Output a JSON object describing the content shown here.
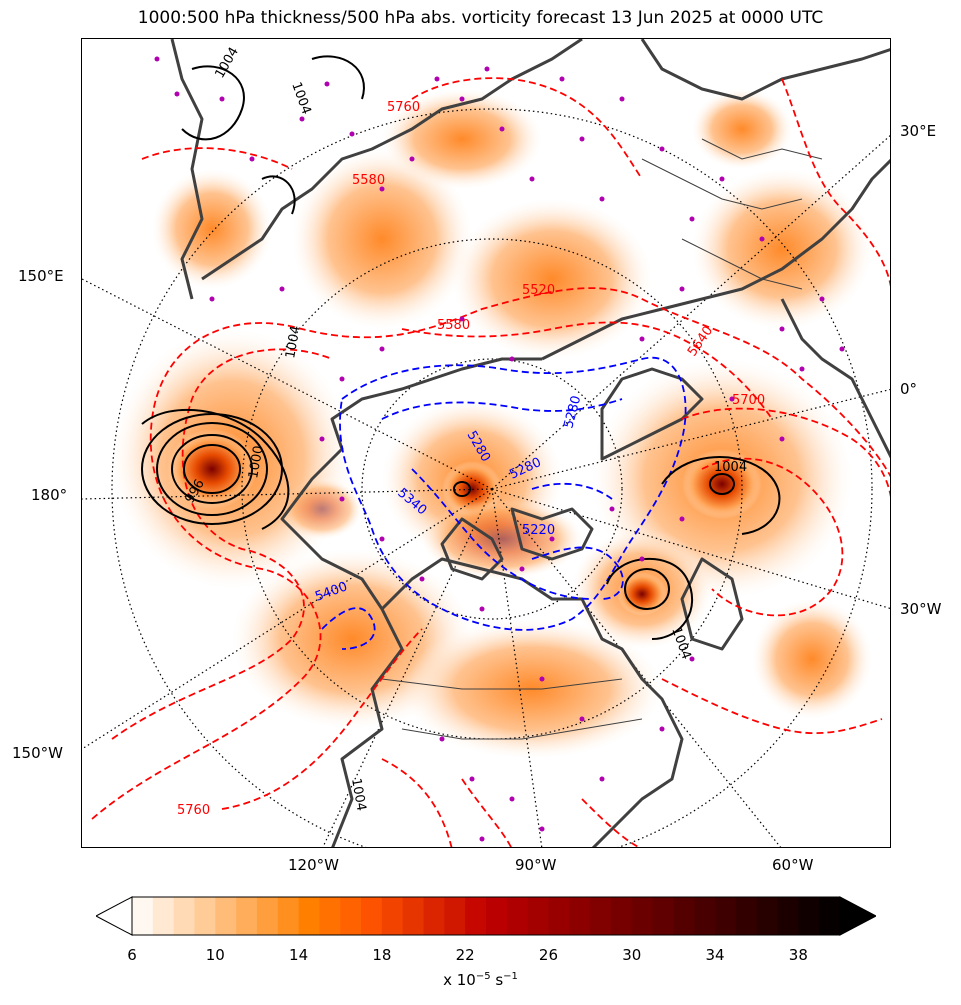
{
  "title": "1000:500 hPa thickness/500 hPa abs. vorticity forecast 13 Jun 2025 at 0000 UTC",
  "map": {
    "graticule_labels_right": [
      "30°E",
      "0°",
      "30°W"
    ],
    "graticule_labels_left": [
      "150°E",
      "180°",
      "150°W"
    ],
    "graticule_labels_bottom": [
      "120°W",
      "90°W",
      "60°W"
    ],
    "thickness_labels_red": [
      "5760",
      "5760",
      "5580",
      "5640",
      "5700",
      "5520",
      "5580"
    ],
    "thickness_labels_blue": [
      "5340",
      "5280",
      "5280",
      "5220",
      "5400",
      "5280"
    ],
    "pressure_labels_black": [
      "1004",
      "1004",
      "1004",
      "1004",
      "1000",
      "1004",
      "1004",
      "996"
    ],
    "colors": {
      "thickness_warm": "#ff0000",
      "thickness_cold": "#0000ff",
      "pressure": "#000000",
      "coastline": "#404040",
      "vorticity_max_marker": "#b000b0"
    }
  },
  "colorbar": {
    "ticks": [
      "6",
      "10",
      "14",
      "18",
      "22",
      "26",
      "30",
      "34",
      "38"
    ],
    "unit_prefix": "x 10",
    "unit_exp1": "−5",
    "unit_mid": " s",
    "unit_exp2": "−1",
    "levels": [
      6,
      7,
      8,
      9,
      10,
      11,
      12,
      13,
      14,
      15,
      16,
      17,
      18,
      19,
      20,
      21,
      22,
      23,
      24,
      25,
      26,
      27,
      28,
      29,
      30,
      31,
      32,
      33,
      34,
      35,
      36,
      37,
      38,
      39,
      40
    ],
    "extend": "both",
    "colormap": "gist_heat_r"
  }
}
